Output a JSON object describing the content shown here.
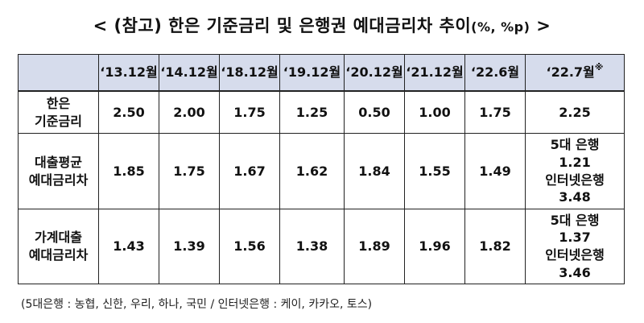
{
  "title": {
    "main": "< (참고) 한은 기준금리 및 은행권 예대금리차 추이",
    "unit": "(%, %p)",
    "tail": " >"
  },
  "table": {
    "headers": [
      "‘13.12월",
      "‘14.12월",
      "‘18.12월",
      "‘19.12월",
      "‘20.12월",
      "‘21.12월",
      "‘22.6월",
      "‘22.7월"
    ],
    "last_header_mark": "※",
    "rows": [
      {
        "label_l1": "한은",
        "label_l2": "기준금리",
        "values": [
          "2.50",
          "2.00",
          "1.75",
          "1.25",
          "0.50",
          "1.00",
          "1.75"
        ],
        "last": {
          "l1": "2.25"
        }
      },
      {
        "label_l1": "대출평균",
        "label_l2": "예대금리차",
        "values": [
          "1.85",
          "1.75",
          "1.67",
          "1.62",
          "1.84",
          "1.55",
          "1.49"
        ],
        "last": {
          "l1": "5대 은행",
          "l2": "1.21",
          "l3": "인터넷은행",
          "l4": "3.48"
        }
      },
      {
        "label_l1": "가계대출",
        "label_l2": "예대금리차",
        "values": [
          "1.43",
          "1.39",
          "1.56",
          "1.38",
          "1.89",
          "1.96",
          "1.82"
        ],
        "last": {
          "l1": "5대 은행",
          "l2": "1.37",
          "l3": "인터넷은행",
          "l4": "3.46"
        }
      }
    ]
  },
  "note": "(5대은행 : 농협, 신한, 우리, 하나, 국민 / 인터넷은행 : 케이, 카카오, 토스)"
}
